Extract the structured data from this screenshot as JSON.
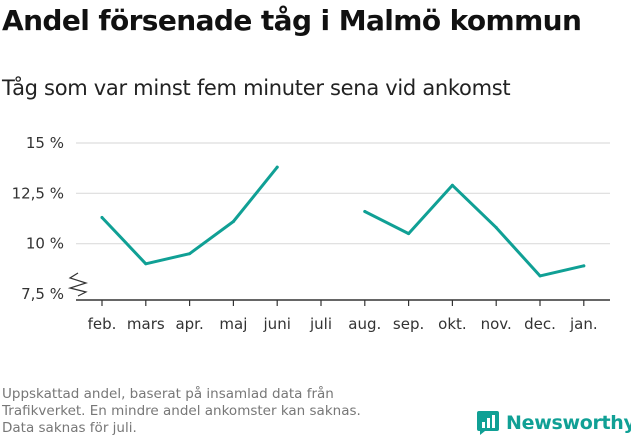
{
  "title": "Andel försenade tåg i Malmö kommun",
  "subtitle": "Tåg som var minst fem minuter sena vid ankomst",
  "footnote": [
    "Uppskattad andel, baserat på insamlad data från",
    "Trafikverket. En mindre andel ankomster kan saknas.",
    "Data saknas för juli."
  ],
  "brand": {
    "name": "Newsworthy",
    "logo_icon": "bar-chart-badge-icon"
  },
  "chart_data": {
    "type": "line",
    "title": "Andel försenade tåg i Malmö kommun",
    "subtitle": "Tåg som var minst fem minuter sena vid ankomst",
    "categories": [
      "feb.",
      "mars",
      "apr.",
      "maj",
      "juni",
      "juli",
      "aug.",
      "sep.",
      "okt.",
      "nov.",
      "dec.",
      "jan."
    ],
    "values": [
      11.3,
      9.0,
      9.5,
      11.1,
      13.8,
      null,
      11.6,
      10.5,
      12.9,
      10.8,
      8.4,
      8.9
    ],
    "ylim": [
      7.5,
      15
    ],
    "yticks": [
      7.5,
      10,
      12.5,
      15
    ],
    "ytick_labels": [
      "7,5 %",
      "10 %",
      "12,5 %",
      "15 %"
    ],
    "y_axis_break": true,
    "grid": true,
    "colors": {
      "line": "#10a095",
      "grid": "#dddddd",
      "axis": "#333333"
    }
  }
}
